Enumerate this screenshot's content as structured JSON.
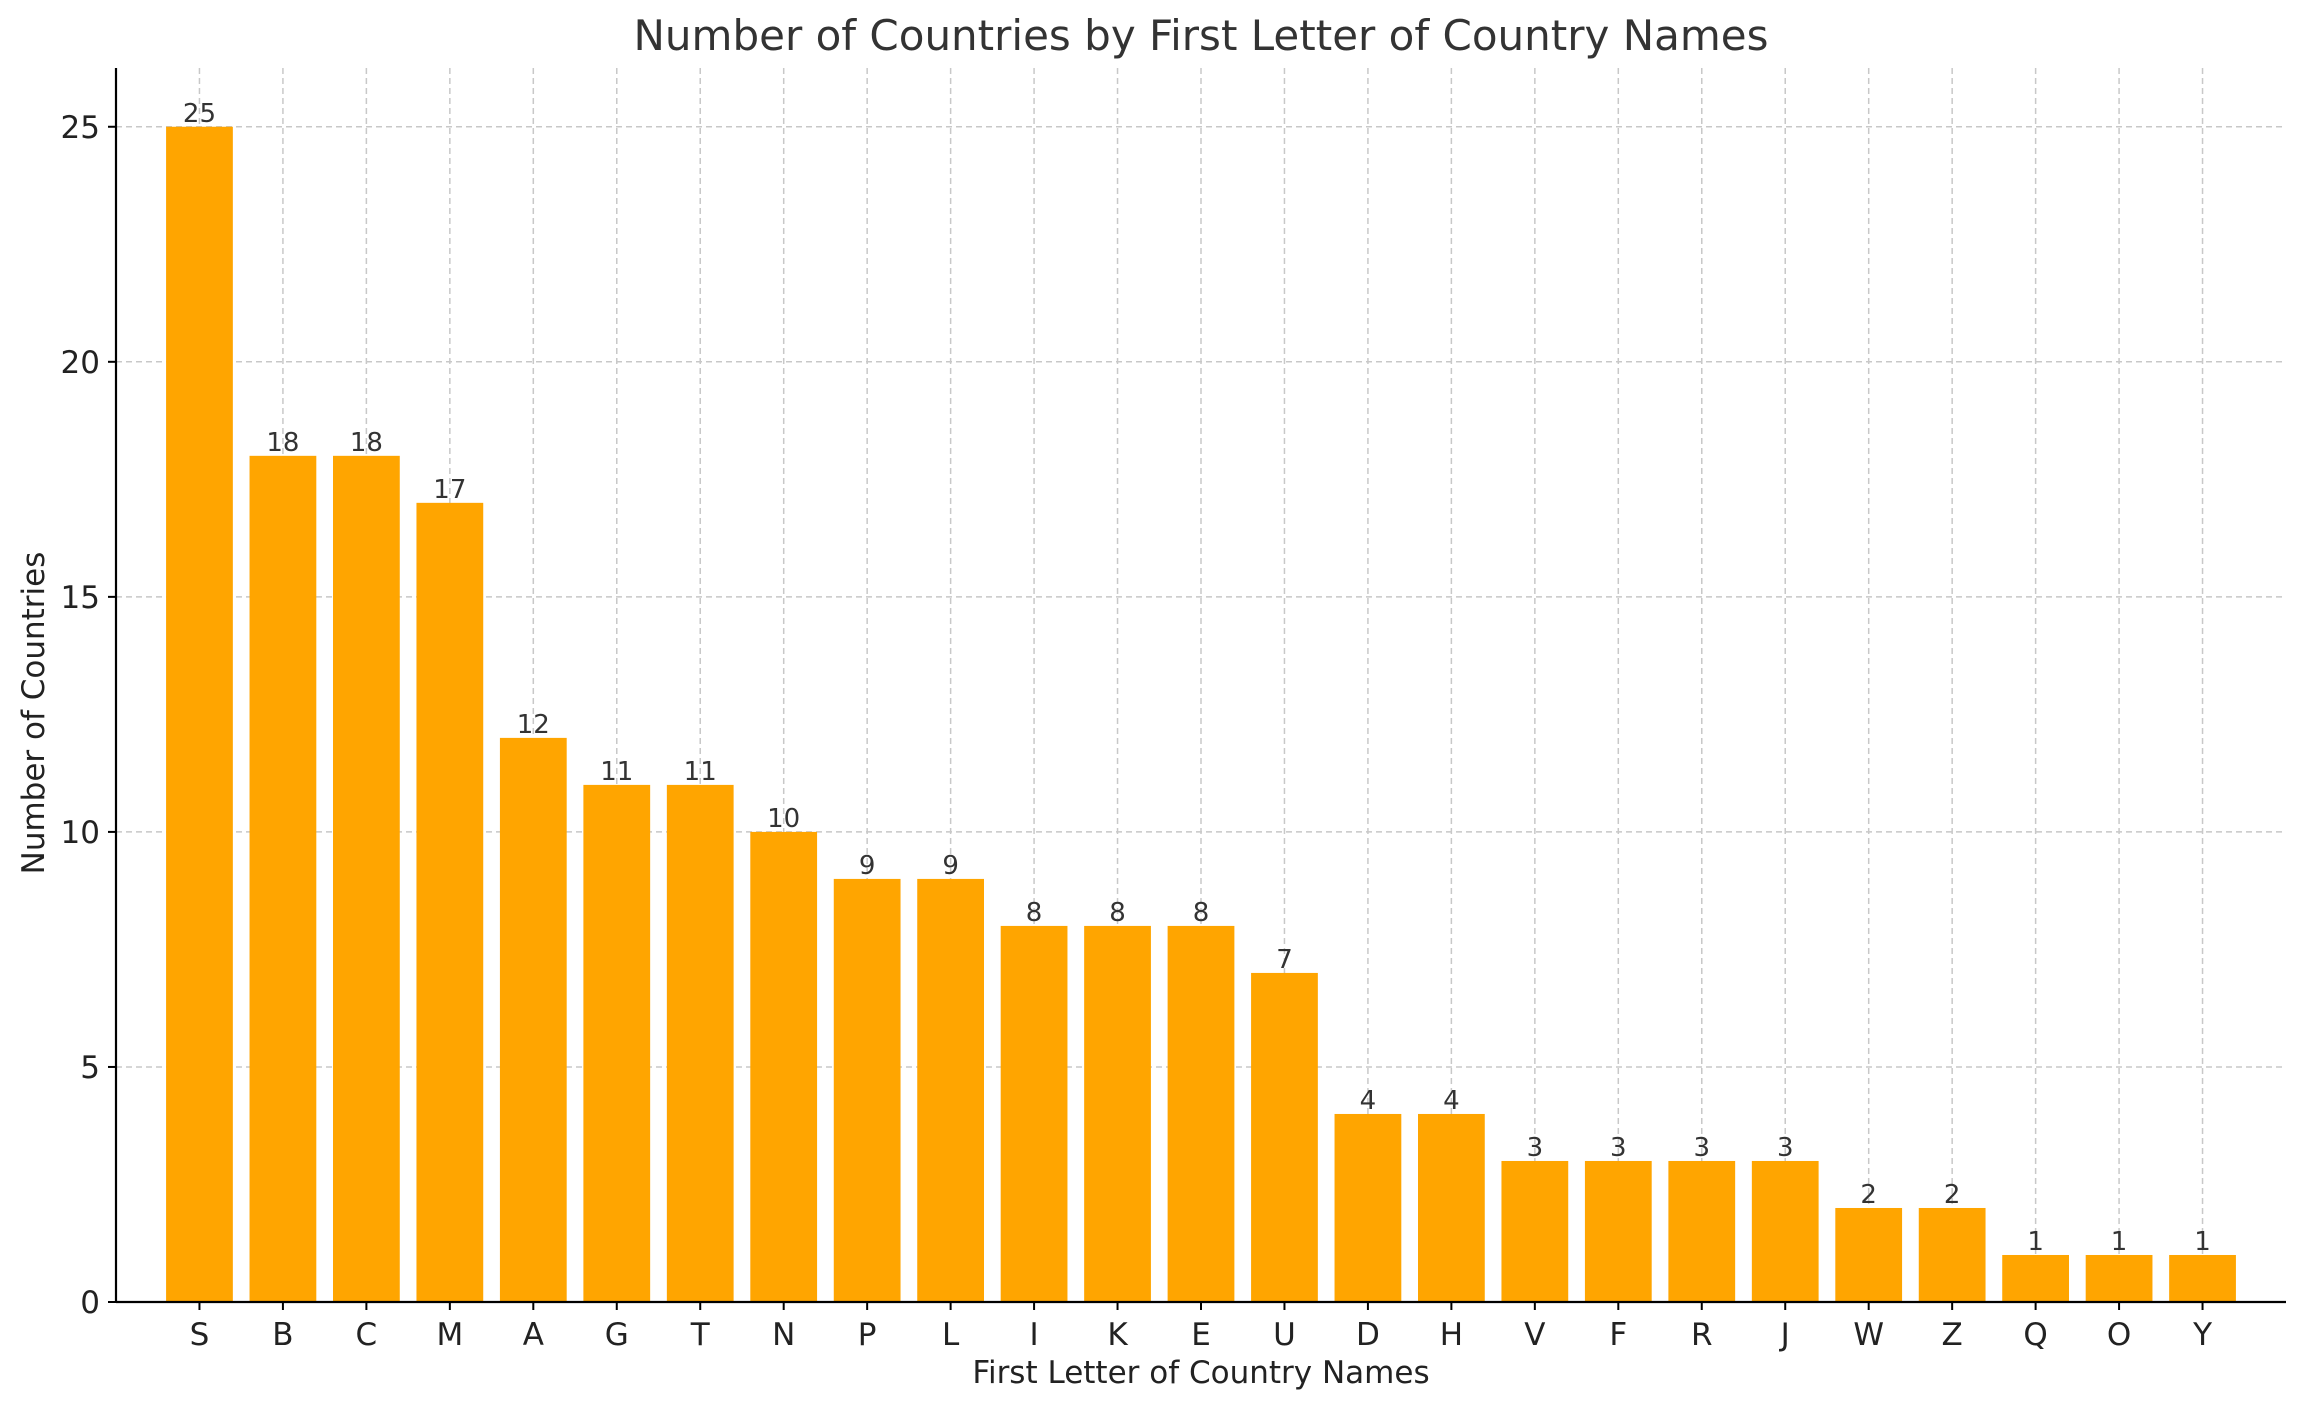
{
  "chart_data": {
    "type": "bar",
    "title": "Number of Countries by First Letter of Country Names",
    "xlabel": "First Letter of Country Names",
    "ylabel": "Number of Countries",
    "categories": [
      "S",
      "B",
      "C",
      "M",
      "A",
      "G",
      "T",
      "N",
      "P",
      "L",
      "I",
      "K",
      "E",
      "U",
      "D",
      "H",
      "V",
      "F",
      "R",
      "J",
      "W",
      "Z",
      "Q",
      "O",
      "Y"
    ],
    "values": [
      25,
      18,
      18,
      17,
      12,
      11,
      11,
      10,
      9,
      9,
      8,
      8,
      8,
      7,
      4,
      4,
      3,
      3,
      3,
      3,
      2,
      2,
      1,
      1,
      1
    ],
    "ylim": [
      0,
      26.25
    ],
    "yticks": [
      0,
      5,
      10,
      15,
      20,
      25
    ],
    "grid": true,
    "bar_color": "#FFA500",
    "show_value_labels": true
  }
}
